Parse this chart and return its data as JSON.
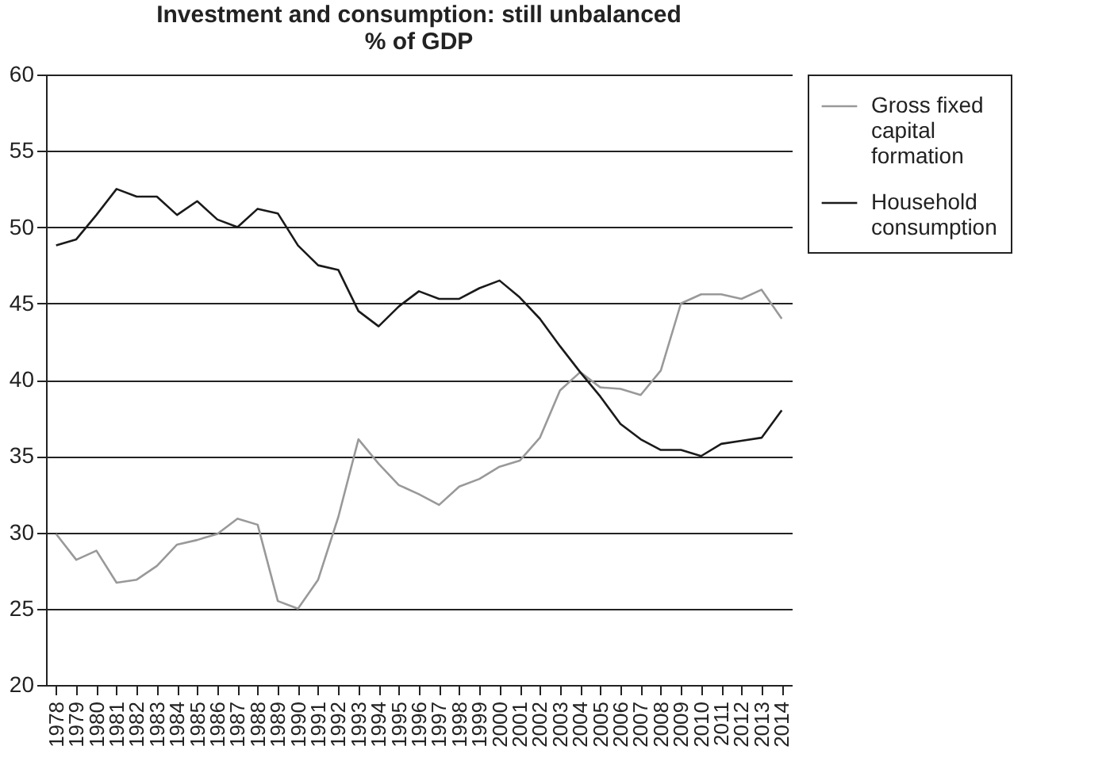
{
  "chart_data": {
    "type": "line",
    "title": "Investment and consumption: still unbalanced",
    "subtitle": "% of GDP",
    "categories": [
      "1978",
      "1979",
      "1980",
      "1981",
      "1982",
      "1983",
      "1984",
      "1985",
      "1986",
      "1987",
      "1988",
      "1989",
      "1990",
      "1991",
      "1992",
      "1993",
      "1994",
      "1995",
      "1996",
      "1997",
      "1998",
      "1999",
      "2000",
      "2001",
      "2002",
      "2003",
      "2004",
      "2005",
      "2006",
      "2007",
      "2008",
      "2009",
      "2010",
      "2011",
      "2012",
      "2013",
      "2014"
    ],
    "series": [
      {
        "name": "Gross fixed capital formation",
        "color": "#999999",
        "values": [
          29.9,
          28.2,
          28.8,
          26.7,
          26.9,
          27.8,
          29.2,
          29.5,
          29.9,
          30.9,
          30.5,
          25.5,
          25.0,
          26.9,
          31.0,
          36.1,
          34.5,
          33.1,
          32.5,
          31.8,
          33.0,
          33.5,
          34.3,
          34.7,
          36.2,
          39.3,
          40.5,
          39.5,
          39.4,
          39.0,
          40.6,
          45.0,
          45.6,
          45.6,
          45.3,
          45.9,
          44.0
        ]
      },
      {
        "name": "Household consumption",
        "color": "#1a1a1a",
        "values": [
          48.8,
          49.2,
          50.8,
          52.5,
          52.0,
          52.0,
          50.8,
          51.7,
          50.5,
          50.0,
          51.2,
          50.9,
          48.8,
          47.5,
          47.2,
          44.5,
          43.5,
          44.8,
          45.8,
          45.3,
          45.3,
          46.0,
          46.5,
          45.4,
          44.0,
          42.2,
          40.5,
          38.9,
          37.1,
          36.1,
          35.4,
          35.4,
          35.0,
          35.8,
          36.0,
          36.2,
          38.0
        ]
      }
    ],
    "ylim": [
      20,
      60
    ],
    "yticks": [
      20,
      25,
      30,
      35,
      40,
      45,
      50,
      55,
      60
    ],
    "grid": "y",
    "legend": "right"
  }
}
